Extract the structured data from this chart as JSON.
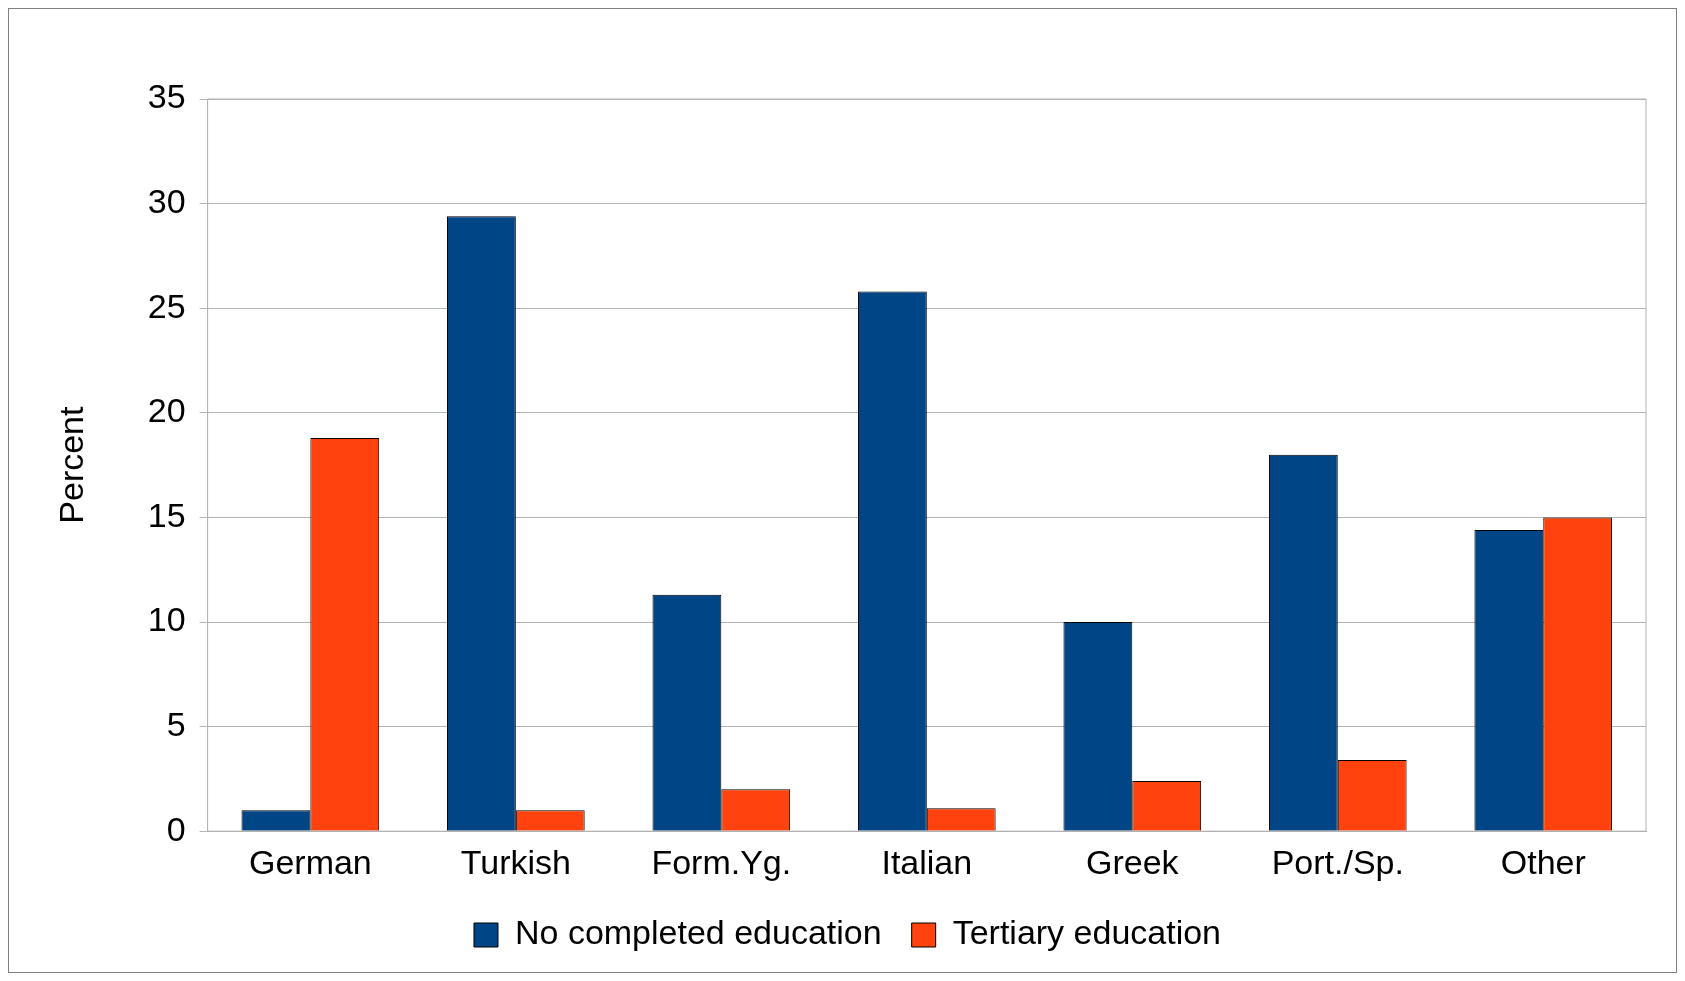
{
  "chart_data": {
    "type": "bar",
    "ylabel": "Percent",
    "categories": [
      "German",
      "Turkish",
      "Form.Yg.",
      "Italian",
      "Greek",
      "Port./Sp.",
      "Other"
    ],
    "series": [
      {
        "name": "No completed education",
        "color": "#004586",
        "values": [
          1.0,
          29.4,
          11.3,
          25.8,
          10.0,
          18.0,
          14.4
        ]
      },
      {
        "name": "Tertiary education",
        "color": "#ff420e",
        "values": [
          18.8,
          1.0,
          2.0,
          1.1,
          2.4,
          3.4,
          15.0
        ]
      }
    ],
    "ylim": [
      0,
      35
    ],
    "yticks": [
      0,
      5,
      10,
      15,
      20,
      25,
      30,
      35
    ],
    "grid": "y",
    "legend": "bottom"
  }
}
